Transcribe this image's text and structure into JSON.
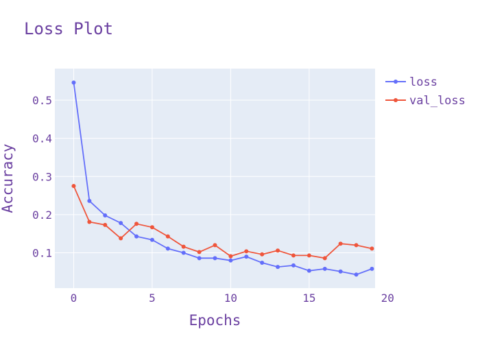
{
  "chart_data": {
    "type": "line",
    "title": "Loss Plot",
    "xlabel": "Epochs",
    "ylabel": "Accuracy",
    "x": [
      0,
      1,
      2,
      3,
      4,
      5,
      6,
      7,
      8,
      9,
      10,
      11,
      12,
      13,
      14,
      15,
      16,
      17,
      18,
      19
    ],
    "xlim": [
      -1.2,
      19.2
    ],
    "ylim": [
      0.0075,
      0.5827
    ],
    "xticks": [
      0,
      5,
      10,
      15,
      20
    ],
    "yticks": [
      0.1,
      0.2,
      0.3,
      0.4,
      0.5
    ],
    "grid": true,
    "legend_position": "right",
    "series": [
      {
        "name": "loss",
        "color": "#636efa",
        "values": [
          0.546,
          0.236,
          0.198,
          0.178,
          0.143,
          0.134,
          0.111,
          0.1,
          0.086,
          0.086,
          0.08,
          0.09,
          0.074,
          0.063,
          0.067,
          0.053,
          0.058,
          0.051,
          0.043,
          0.058
        ]
      },
      {
        "name": "val_loss",
        "color": "#ef553b",
        "values": [
          0.275,
          0.181,
          0.173,
          0.138,
          0.176,
          0.167,
          0.143,
          0.116,
          0.102,
          0.12,
          0.091,
          0.104,
          0.096,
          0.106,
          0.093,
          0.093,
          0.086,
          0.124,
          0.12,
          0.111
        ]
      }
    ],
    "colors": {
      "plot_bg": "#e5ecf6",
      "grid": "#ffffff",
      "text": "#6a3fa0"
    }
  }
}
